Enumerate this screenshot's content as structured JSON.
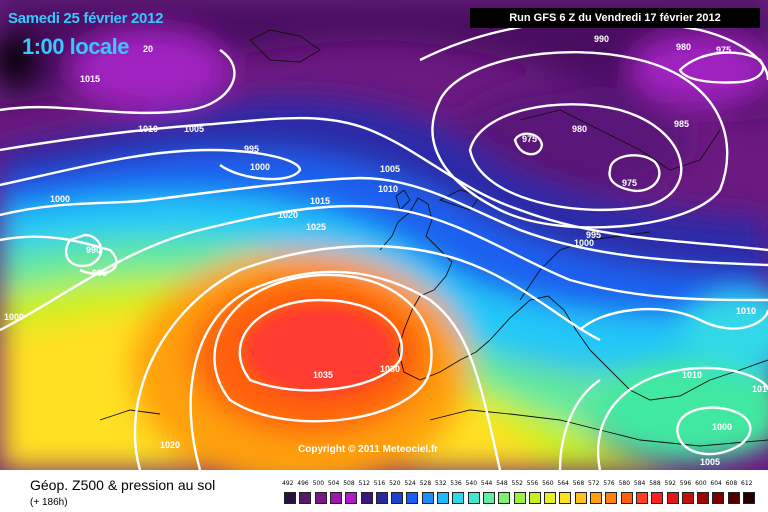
{
  "map": {
    "title_date": "Samedi 25 février 2012",
    "title_time": "1:00 locale",
    "run_info": "Run GFS 6 Z du Vendredi 17 février 2012",
    "copyright": "Copyright © 2011 Meteociel.fr",
    "isobar_labels": [
      {
        "id": "l1015a",
        "text": "1015"
      },
      {
        "id": "l20",
        "text": "20"
      },
      {
        "id": "l1010a",
        "text": "1010"
      },
      {
        "id": "l1005a",
        "text": "1005"
      },
      {
        "id": "l995a",
        "text": "995"
      },
      {
        "id": "l1000a",
        "text": "1000"
      },
      {
        "id": "l1000b",
        "text": "1000"
      },
      {
        "id": "l990",
        "text": "990"
      },
      {
        "id": "l995b",
        "text": "995"
      },
      {
        "id": "l1000c",
        "text": "1000"
      },
      {
        "id": "l1020a",
        "text": "1020"
      },
      {
        "id": "l1015b",
        "text": "1015"
      },
      {
        "id": "l1025",
        "text": "1025"
      },
      {
        "id": "l1005b",
        "text": "1005"
      },
      {
        "id": "l1010b",
        "text": "1010"
      },
      {
        "id": "l990b",
        "text": "990"
      },
      {
        "id": "l980a",
        "text": "980"
      },
      {
        "id": "l975a",
        "text": "975"
      },
      {
        "id": "l975b",
        "text": "975"
      },
      {
        "id": "l980b",
        "text": "980"
      },
      {
        "id": "l985",
        "text": "985"
      },
      {
        "id": "l975c",
        "text": "975"
      },
      {
        "id": "l995c",
        "text": "995"
      },
      {
        "id": "l1000d",
        "text": "1000"
      },
      {
        "id": "l1035",
        "text": "1035"
      },
      {
        "id": "l1030",
        "text": "1030"
      },
      {
        "id": "l1020b",
        "text": "1020"
      },
      {
        "id": "l1010c",
        "text": "1010"
      },
      {
        "id": "l1010d",
        "text": "1010"
      },
      {
        "id": "l1000e",
        "text": "1000"
      },
      {
        "id": "l1005c",
        "text": "1005"
      },
      {
        "id": "l101",
        "text": "101"
      }
    ]
  },
  "footer": {
    "caption": "Géop. Z500 & pression au sol",
    "caption_sub": "(+ 186h)",
    "scale_values": [
      "492",
      "496",
      "500",
      "504",
      "508",
      "512",
      "516",
      "520",
      "524",
      "528",
      "532",
      "536",
      "540",
      "544",
      "548",
      "552",
      "556",
      "560",
      "564",
      "568",
      "572",
      "576",
      "580",
      "584",
      "588",
      "592",
      "596",
      "600",
      "604",
      "608",
      "612"
    ],
    "scale_colors": [
      "#2a1040",
      "#5a1a6a",
      "#7a1a8a",
      "#9a1aa8",
      "#b01ac8",
      "#3a1880",
      "#2a2aa0",
      "#2040d0",
      "#1a60f0",
      "#1a90ff",
      "#20b8ff",
      "#2ad8f0",
      "#40e8d0",
      "#60f0a0",
      "#80f070",
      "#a0f040",
      "#c8f020",
      "#e8f020",
      "#ffe020",
      "#ffc020",
      "#ffa010",
      "#ff8010",
      "#ff6010",
      "#ff4020",
      "#ff2020",
      "#e01818",
      "#c01010",
      "#a00808",
      "#800000",
      "#500000",
      "#200000"
    ]
  }
}
